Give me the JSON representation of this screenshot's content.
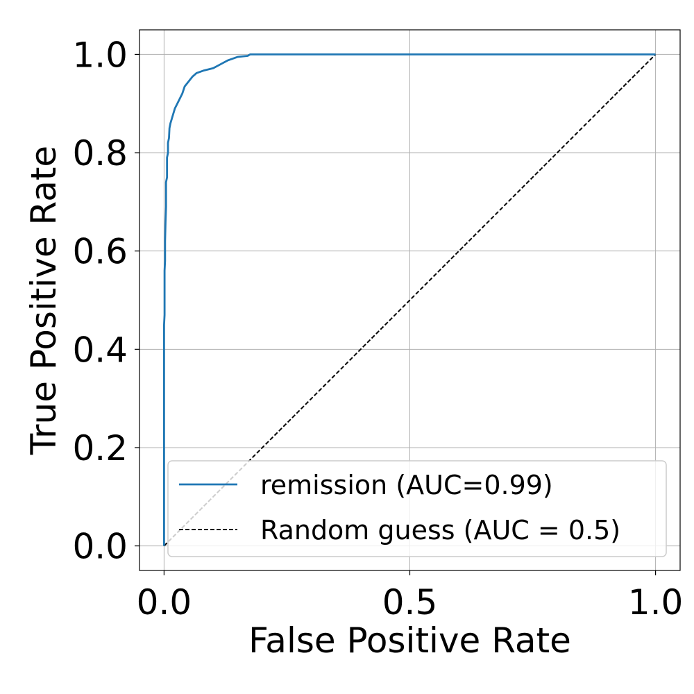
{
  "chart_data": {
    "type": "line",
    "title": "",
    "xlabel": "False Positive Rate",
    "ylabel": "True Positive Rate",
    "xlim": [
      -0.05,
      1.05
    ],
    "ylim": [
      -0.05,
      1.05
    ],
    "grid": true,
    "legend_position": "lower-right",
    "x_ticks": [
      0.0,
      0.5,
      1.0
    ],
    "x_tick_labels": [
      "0.0",
      "0.5",
      "1.0"
    ],
    "y_ticks": [
      0.0,
      0.2,
      0.4,
      0.6,
      0.8,
      1.0
    ],
    "y_tick_labels": [
      "0.0",
      "0.2",
      "0.4",
      "0.6",
      "0.8",
      "1.0"
    ],
    "series": [
      {
        "name": "remission (AUC=0.99)",
        "color": "#1f77b4",
        "style": "solid",
        "x": [
          0.0,
          0.0,
          0.001,
          0.001,
          0.002,
          0.002,
          0.003,
          0.004,
          0.004,
          0.006,
          0.006,
          0.008,
          0.008,
          0.01,
          0.011,
          0.013,
          0.016,
          0.019,
          0.022,
          0.027,
          0.032,
          0.037,
          0.042,
          0.05,
          0.058,
          0.066,
          0.08,
          0.1,
          0.115,
          0.13,
          0.15,
          0.17,
          0.175,
          1.0
        ],
        "y": [
          0.0,
          0.45,
          0.47,
          0.56,
          0.58,
          0.62,
          0.66,
          0.69,
          0.74,
          0.75,
          0.79,
          0.8,
          0.82,
          0.83,
          0.85,
          0.86,
          0.87,
          0.88,
          0.89,
          0.9,
          0.91,
          0.92,
          0.935,
          0.945,
          0.955,
          0.962,
          0.967,
          0.972,
          0.98,
          0.988,
          0.995,
          0.997,
          1.0,
          1.0
        ]
      },
      {
        "name": "Random guess (AUC = 0.5)",
        "color": "#000000",
        "style": "dashed",
        "x": [
          0.0,
          1.0
        ],
        "y": [
          0.0,
          1.0
        ]
      }
    ]
  }
}
